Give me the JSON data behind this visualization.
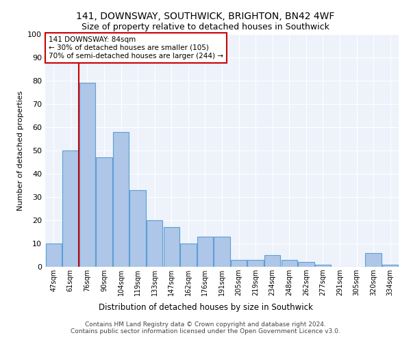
{
  "title": "141, DOWNSWAY, SOUTHWICK, BRIGHTON, BN42 4WF",
  "subtitle": "Size of property relative to detached houses in Southwick",
  "xlabel": "Distribution of detached houses by size in Southwick",
  "ylabel": "Number of detached properties",
  "categories": [
    "47sqm",
    "61sqm",
    "76sqm",
    "90sqm",
    "104sqm",
    "119sqm",
    "133sqm",
    "147sqm",
    "162sqm",
    "176sqm",
    "191sqm",
    "205sqm",
    "219sqm",
    "234sqm",
    "248sqm",
    "262sqm",
    "277sqm",
    "291sqm",
    "305sqm",
    "320sqm",
    "334sqm"
  ],
  "values": [
    10,
    50,
    79,
    47,
    58,
    33,
    20,
    17,
    10,
    13,
    13,
    3,
    3,
    5,
    3,
    2,
    1,
    0,
    0,
    6,
    1
  ],
  "bar_color": "#aec6e8",
  "bar_edge_color": "#5a9fd4",
  "property_line_x": 1.5,
  "property_line_label": "141 DOWNSWAY: 84sqm",
  "annotation_line1": "← 30% of detached houses are smaller (105)",
  "annotation_line2": "70% of semi-detached houses are larger (244) →",
  "annotation_box_color": "#ffffff",
  "annotation_box_edge_color": "#cc0000",
  "line_color": "#cc0000",
  "ylim": [
    0,
    100
  ],
  "yticks": [
    0,
    10,
    20,
    30,
    40,
    50,
    60,
    70,
    80,
    90,
    100
  ],
  "background_color": "#eef2fb",
  "footer_line1": "Contains HM Land Registry data © Crown copyright and database right 2024.",
  "footer_line2": "Contains public sector information licensed under the Open Government Licence v3.0."
}
